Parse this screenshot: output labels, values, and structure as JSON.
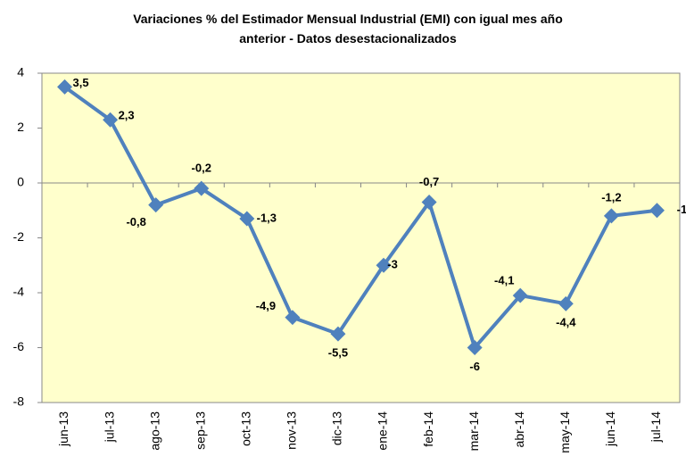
{
  "chart_data": {
    "type": "line",
    "title": "Variaciones %  del Estimador Mensual Industrial (EMI) con igual mes año anterior - Datos desestacionalizados",
    "categories": [
      "jun-13",
      "jul-13",
      "ago-13",
      "sep-13",
      "oct-13",
      "nov-13",
      "dic-13",
      "ene-14",
      "feb-14",
      "mar-14",
      "abr-14",
      "may-14",
      "jun-14",
      "jul-14"
    ],
    "series": [
      {
        "name": "EMI",
        "color": "#4f81bd",
        "values": [
          3.5,
          2.3,
          -0.8,
          -0.2,
          -1.3,
          -4.9,
          -5.5,
          -3,
          -0.7,
          -6,
          -4.1,
          -4.4,
          -1.2,
          -1
        ],
        "value_labels": [
          "3,5",
          "2,3",
          "-0,8",
          "-0,2",
          "-1,3",
          "-4,9",
          "-5,5",
          "-3",
          "-0,7",
          "-6",
          "-4,1",
          "-4,4",
          "-1,2",
          "-1"
        ]
      }
    ],
    "ylim": [
      -8,
      4
    ],
    "yticks": [
      -8,
      -6,
      -4,
      -2,
      0,
      2,
      4
    ],
    "grid": false
  }
}
